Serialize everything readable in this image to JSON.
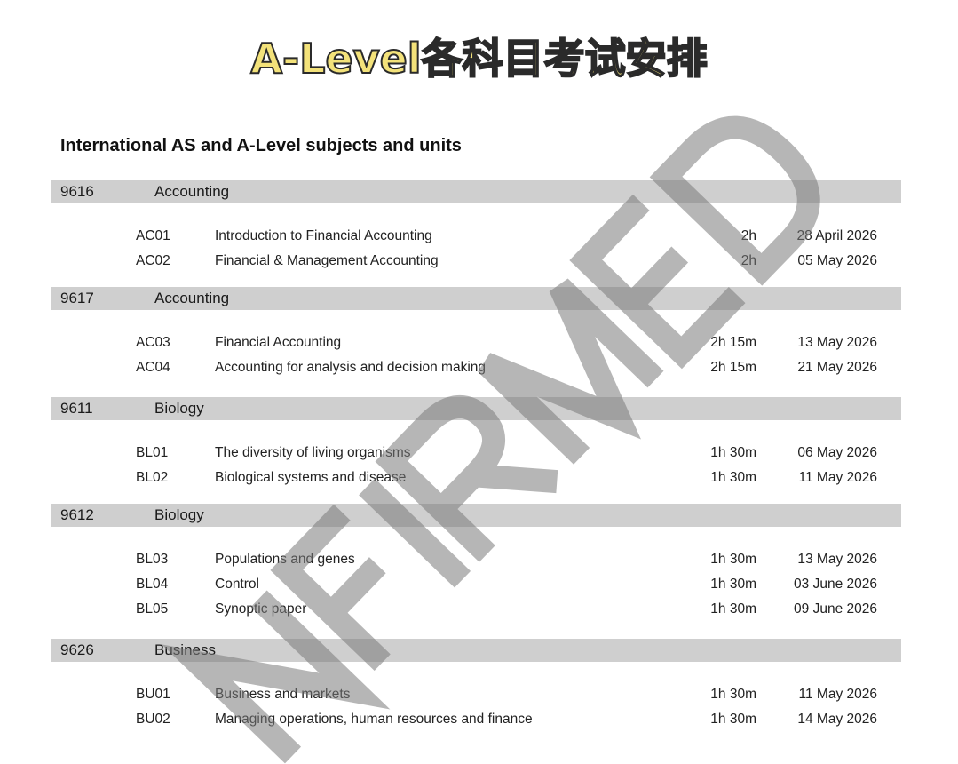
{
  "title": "A-Level各科目考试安排",
  "subtitle": "International AS and A-Level subjects and units",
  "watermark": "UNCONFIRMED",
  "groups": [
    {
      "code": "9616",
      "subject": "Accounting",
      "units": [
        {
          "code": "AC01",
          "title": "Introduction to Financial Accounting",
          "duration": "2h",
          "date": "28 April 2026"
        },
        {
          "code": "AC02",
          "title": "Financial & Management Accounting",
          "duration": "2h",
          "date": "05 May 2026"
        }
      ]
    },
    {
      "code": "9617",
      "subject": "Accounting",
      "units": [
        {
          "code": "AC03",
          "title": "Financial Accounting",
          "duration": "2h 15m",
          "date": "13 May 2026"
        },
        {
          "code": "AC04",
          "title": "Accounting for analysis and decision making",
          "duration": "2h 15m",
          "date": "21 May 2026"
        }
      ]
    },
    {
      "code": "9611",
      "subject": "Biology",
      "units": [
        {
          "code": "BL01",
          "title": "The diversity of living organisms",
          "duration": "1h 30m",
          "date": "06 May 2026"
        },
        {
          "code": "BL02",
          "title": "Biological systems and disease",
          "duration": "1h 30m",
          "date": "11 May 2026"
        }
      ]
    },
    {
      "code": "9612",
      "subject": "Biology",
      "units": [
        {
          "code": "BL03",
          "title": "Populations and genes",
          "duration": "1h 30m",
          "date": "13 May 2026"
        },
        {
          "code": "BL04",
          "title": "Control",
          "duration": "1h 30m",
          "date": "03 June 2026"
        },
        {
          "code": "BL05",
          "title": "Synoptic paper",
          "duration": "1h 30m",
          "date": "09 June 2026"
        }
      ]
    },
    {
      "code": "9626",
      "subject": "Business",
      "units": [
        {
          "code": "BU01",
          "title": "Business and markets",
          "duration": "1h 30m",
          "date": "11 May 2026"
        },
        {
          "code": "BU02",
          "title": "Managing operations, human resources and finance",
          "duration": "1h 30m",
          "date": "14 May 2026"
        }
      ]
    }
  ]
}
